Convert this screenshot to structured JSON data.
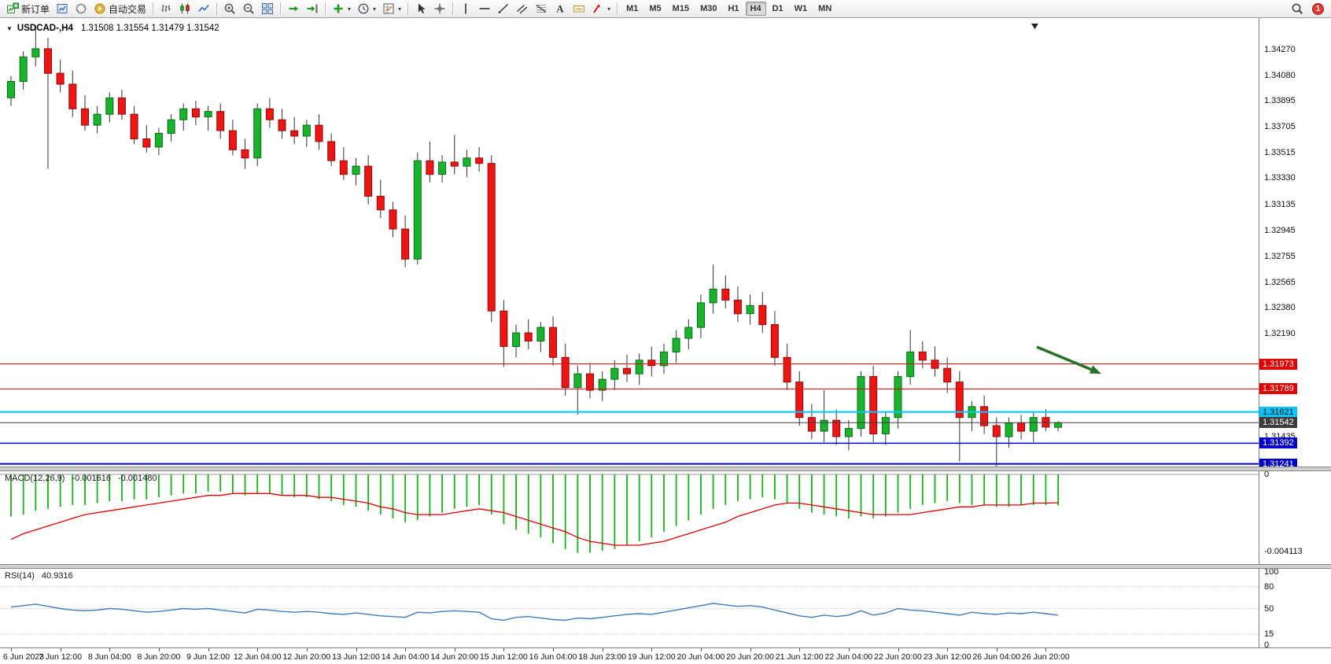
{
  "toolbar": {
    "groups": [
      [
        {
          "name": "new-order",
          "icon": "new-order",
          "label": "新订单"
        },
        {
          "name": "new-chart",
          "icon": "new-chart"
        },
        {
          "name": "profiles",
          "icon": "profiles"
        },
        {
          "name": "autotrading",
          "icon": "autotrading",
          "label": "自动交易"
        }
      ],
      [
        {
          "name": "bar-chart",
          "icon": "bar-chart"
        },
        {
          "name": "candlestick-chart",
          "icon": "candlestick-chart"
        },
        {
          "name": "line-chart",
          "icon": "line-chart"
        }
      ],
      [
        {
          "name": "zoom-in",
          "icon": "zoom-in"
        },
        {
          "name": "zoom-out",
          "icon": "zoom-out"
        },
        {
          "name": "tile-windows",
          "icon": "tile-windows"
        }
      ],
      [
        {
          "name": "auto-scroll",
          "icon": "auto-scroll"
        },
        {
          "name": "chart-shift",
          "icon": "chart-shift"
        }
      ],
      [
        {
          "name": "indicators",
          "icon": "indicators",
          "caret": true
        },
        {
          "name": "periods",
          "icon": "periods",
          "caret": true
        },
        {
          "name": "templates",
          "icon": "templates",
          "caret": true
        }
      ],
      [
        {
          "name": "cursor",
          "icon": "cursor"
        },
        {
          "name": "crosshair",
          "icon": "crosshair"
        }
      ],
      [
        {
          "name": "vertical-line",
          "icon": "vertical-line"
        },
        {
          "name": "horizontal-line",
          "icon": "horizontal-line"
        },
        {
          "name": "trendline",
          "icon": "trendline"
        },
        {
          "name": "equidistant-channel",
          "icon": "equidistant-channel"
        },
        {
          "name": "fibonacci",
          "icon": "fibonacci"
        },
        {
          "name": "text",
          "icon": "text"
        },
        {
          "name": "text-label",
          "icon": "text-label"
        },
        {
          "name": "arrows",
          "icon": "arrows",
          "caret": true
        }
      ]
    ],
    "timeframes": {
      "items": [
        "M1",
        "M5",
        "M15",
        "M30",
        "H1",
        "H4",
        "D1",
        "W1",
        "MN"
      ],
      "active": "H4"
    },
    "notification_count": "1"
  },
  "chart": {
    "title": "USDCAD-,H4",
    "ohlc_text": "1.31508 1.31554 1.31479 1.31542"
  },
  "chart_data": {
    "type": "candlestick",
    "symbol": "USDCAD-",
    "period": "H4",
    "colors": {
      "up": "#18b42c",
      "up_stroke": "#0b6b18",
      "down": "#ee1515",
      "down_stroke": "#8f0b0b",
      "wick": "#333333"
    },
    "price_axis_labels": [
      "1.34270",
      "1.34080",
      "1.33895",
      "1.33705",
      "1.33515",
      "1.33330",
      "1.33135",
      "1.32945",
      "1.32755",
      "1.32565",
      "1.32380",
      "1.32190",
      "1.31435"
    ],
    "time_axis_labels": [
      "6 Jun 2023",
      "7 Jun 12:00",
      "8 Jun 04:00",
      "8 Jun 20:00",
      "9 Jun 12:00",
      "12 Jun 04:00",
      "12 Jun 20:00",
      "13 Jun 12:00",
      "14 Jun 04:00",
      "14 Jun 20:00",
      "15 Jun 12:00",
      "16 Jun 04:00",
      "18 Jun 23:00",
      "19 Jun 12:00",
      "20 Jun 04:00",
      "20 Jun 20:00",
      "21 Jun 12:00",
      "22 Jun 04:00",
      "22 Jun 20:00",
      "23 Jun 12:00",
      "26 Jun 04:00",
      "26 Jun 20:00"
    ],
    "candles": [
      [
        1.3392,
        1.3408,
        1.3386,
        1.3404
      ],
      [
        1.3404,
        1.3426,
        1.3398,
        1.3422
      ],
      [
        1.3422,
        1.3445,
        1.3415,
        1.3428
      ],
      [
        1.3428,
        1.3436,
        1.334,
        1.341
      ],
      [
        1.341,
        1.342,
        1.3396,
        1.3402
      ],
      [
        1.3402,
        1.3412,
        1.3378,
        1.3384
      ],
      [
        1.3384,
        1.3394,
        1.3368,
        1.3372
      ],
      [
        1.3372,
        1.3386,
        1.3366,
        1.338
      ],
      [
        1.338,
        1.3396,
        1.3374,
        1.3392
      ],
      [
        1.3392,
        1.3398,
        1.3376,
        1.338
      ],
      [
        1.338,
        1.3386,
        1.3358,
        1.3362
      ],
      [
        1.3362,
        1.3372,
        1.3352,
        1.3356
      ],
      [
        1.3356,
        1.337,
        1.335,
        1.3366
      ],
      [
        1.3366,
        1.338,
        1.336,
        1.3376
      ],
      [
        1.3376,
        1.3388,
        1.3368,
        1.3384
      ],
      [
        1.3384,
        1.339,
        1.3372,
        1.3378
      ],
      [
        1.3378,
        1.3386,
        1.3368,
        1.3382
      ],
      [
        1.3382,
        1.3388,
        1.3362,
        1.3368
      ],
      [
        1.3368,
        1.3376,
        1.335,
        1.3354
      ],
      [
        1.3354,
        1.3362,
        1.334,
        1.3348
      ],
      [
        1.3348,
        1.3388,
        1.3342,
        1.3384
      ],
      [
        1.3384,
        1.3392,
        1.337,
        1.3376
      ],
      [
        1.3376,
        1.3384,
        1.3362,
        1.3368
      ],
      [
        1.3368,
        1.3378,
        1.3358,
        1.3364
      ],
      [
        1.3364,
        1.3376,
        1.3356,
        1.3372
      ],
      [
        1.3372,
        1.338,
        1.3354,
        1.336
      ],
      [
        1.336,
        1.3366,
        1.3342,
        1.3346
      ],
      [
        1.3346,
        1.3356,
        1.3332,
        1.3336
      ],
      [
        1.3336,
        1.3348,
        1.3328,
        1.3342
      ],
      [
        1.3342,
        1.335,
        1.3314,
        1.332
      ],
      [
        1.332,
        1.3332,
        1.3304,
        1.331
      ],
      [
        1.331,
        1.3316,
        1.329,
        1.3296
      ],
      [
        1.3296,
        1.3306,
        1.3268,
        1.3274
      ],
      [
        1.3274,
        1.3352,
        1.327,
        1.3346
      ],
      [
        1.3346,
        1.336,
        1.333,
        1.3336
      ],
      [
        1.3336,
        1.335,
        1.333,
        1.3345
      ],
      [
        1.3345,
        1.3365,
        1.3336,
        1.3342
      ],
      [
        1.3342,
        1.3354,
        1.3334,
        1.3348
      ],
      [
        1.3348,
        1.3356,
        1.3338,
        1.3344
      ],
      [
        1.3344,
        1.335,
        1.3228,
        1.3236
      ],
      [
        1.3236,
        1.3244,
        1.3195,
        1.321
      ],
      [
        1.321,
        1.3226,
        1.3202,
        1.322
      ],
      [
        1.322,
        1.323,
        1.3208,
        1.3214
      ],
      [
        1.3214,
        1.3228,
        1.3206,
        1.3224
      ],
      [
        1.3224,
        1.3232,
        1.3196,
        1.3202
      ],
      [
        1.3202,
        1.3212,
        1.3174,
        1.318
      ],
      [
        1.318,
        1.3196,
        1.316,
        1.319
      ],
      [
        1.319,
        1.3198,
        1.3172,
        1.3178
      ],
      [
        1.3178,
        1.3192,
        1.317,
        1.3186
      ],
      [
        1.3186,
        1.32,
        1.3178,
        1.3194
      ],
      [
        1.3194,
        1.3204,
        1.3184,
        1.319
      ],
      [
        1.319,
        1.3205,
        1.3182,
        1.32
      ],
      [
        1.32,
        1.321,
        1.3188,
        1.3196
      ],
      [
        1.3196,
        1.3212,
        1.319,
        1.3206
      ],
      [
        1.3206,
        1.3222,
        1.3198,
        1.3216
      ],
      [
        1.3216,
        1.323,
        1.3208,
        1.3224
      ],
      [
        1.3224,
        1.3248,
        1.3216,
        1.3242
      ],
      [
        1.3242,
        1.327,
        1.3234,
        1.3252
      ],
      [
        1.3252,
        1.3262,
        1.3238,
        1.3244
      ],
      [
        1.3244,
        1.3254,
        1.3228,
        1.3234
      ],
      [
        1.3234,
        1.3248,
        1.3226,
        1.324
      ],
      [
        1.324,
        1.325,
        1.322,
        1.3226
      ],
      [
        1.3226,
        1.3236,
        1.3196,
        1.3202
      ],
      [
        1.3202,
        1.3212,
        1.3178,
        1.3184
      ],
      [
        1.3184,
        1.3192,
        1.3152,
        1.3158
      ],
      [
        1.3158,
        1.3168,
        1.3142,
        1.3148
      ],
      [
        1.3148,
        1.3178,
        1.314,
        1.3156
      ],
      [
        1.3156,
        1.3164,
        1.3138,
        1.3144
      ],
      [
        1.3144,
        1.3156,
        1.3134,
        1.315
      ],
      [
        1.315,
        1.3192,
        1.3144,
        1.3188
      ],
      [
        1.3188,
        1.3196,
        1.314,
        1.3146
      ],
      [
        1.3146,
        1.3162,
        1.3138,
        1.3158
      ],
      [
        1.3158,
        1.3192,
        1.315,
        1.3188
      ],
      [
        1.3188,
        1.3222,
        1.3182,
        1.3206
      ],
      [
        1.3206,
        1.3214,
        1.3194,
        1.32
      ],
      [
        1.32,
        1.321,
        1.3188,
        1.3194
      ],
      [
        1.3194,
        1.3202,
        1.3176,
        1.3184
      ],
      [
        1.3184,
        1.3192,
        1.3126,
        1.3158
      ],
      [
        1.3158,
        1.317,
        1.3148,
        1.3166
      ],
      [
        1.3166,
        1.3174,
        1.3146,
        1.3152
      ],
      [
        1.3152,
        1.3158,
        1.3122,
        1.3144
      ],
      [
        1.3144,
        1.3158,
        1.3136,
        1.3154
      ],
      [
        1.3154,
        1.316,
        1.3142,
        1.3148
      ],
      [
        1.3148,
        1.3162,
        1.314,
        1.3158
      ],
      [
        1.3158,
        1.3164,
        1.3148,
        1.3151
      ],
      [
        1.31508,
        1.31554,
        1.31479,
        1.31542
      ]
    ],
    "hlines": [
      {
        "value": 1.31973,
        "label": "1.31973",
        "color": "#e00000",
        "width": 1,
        "text": "#ffffff"
      },
      {
        "value": 1.31789,
        "label": "1.31789",
        "color": "#e00000",
        "width": 1,
        "text": "#ffffff"
      },
      {
        "value": 1.31621,
        "label": "1.31621",
        "color": "#00c8ff",
        "width": 2,
        "text": "#000000"
      },
      {
        "value": 1.31542,
        "label": "1.31542",
        "color": "#3c3c3c",
        "width": 1,
        "text": "#ffffff"
      },
      {
        "value": 1.31392,
        "label": "1.31392",
        "color": "#0000c8",
        "width": 1.5,
        "text": "#ffffff"
      },
      {
        "value": 1.31241,
        "label": "1.31241",
        "color": "#0000c8",
        "width": 2,
        "text": "#ffffff"
      }
    ],
    "arrow_annotation": {
      "from": [
        1318,
        418
      ],
      "to": [
        1400,
        452
      ],
      "color": "#267326"
    },
    "macd": {
      "label": "MACD(12,26,9)",
      "value_main": "-0.001616",
      "value_signal": "-0.001480",
      "axis_labels": [
        "0",
        "-0.004113"
      ],
      "range": [
        0,
        -0.004113
      ],
      "hist_color": "#19b219",
      "signal_color": "#e00000",
      "histogram": [
        -0.0022,
        -0.0021,
        -0.0019,
        -0.0018,
        -0.0017,
        -0.0016,
        -0.0016,
        -0.0015,
        -0.0014,
        -0.0014,
        -0.0013,
        -0.0013,
        -0.0012,
        -0.0011,
        -0.001,
        -0.001,
        -0.0009,
        -0.0009,
        -0.001,
        -0.0011,
        -0.001,
        -0.001,
        -0.0011,
        -0.0012,
        -0.0012,
        -0.0013,
        -0.0014,
        -0.0016,
        -0.0017,
        -0.0019,
        -0.0021,
        -0.0023,
        -0.0025,
        -0.0024,
        -0.0022,
        -0.002,
        -0.0018,
        -0.0017,
        -0.0016,
        -0.0021,
        -0.0026,
        -0.0029,
        -0.0031,
        -0.0033,
        -0.0036,
        -0.0039,
        -0.0041,
        -0.0041,
        -0.004,
        -0.0039,
        -0.0037,
        -0.0035,
        -0.0033,
        -0.003,
        -0.0027,
        -0.0024,
        -0.0021,
        -0.0018,
        -0.0016,
        -0.0014,
        -0.0013,
        -0.0012,
        -0.0013,
        -0.0015,
        -0.0018,
        -0.002,
        -0.0021,
        -0.0022,
        -0.0023,
        -0.0022,
        -0.0023,
        -0.0022,
        -0.002,
        -0.0018,
        -0.0016,
        -0.0015,
        -0.0014,
        -0.0015,
        -0.0016,
        -0.0016,
        -0.0017,
        -0.0017,
        -0.0016,
        -0.0016,
        -0.0016,
        -0.001616
      ],
      "signal": [
        -0.0034,
        -0.0031,
        -0.0029,
        -0.0027,
        -0.0025,
        -0.0023,
        -0.0021,
        -0.002,
        -0.0019,
        -0.0018,
        -0.0017,
        -0.0016,
        -0.0015,
        -0.0014,
        -0.0013,
        -0.0012,
        -0.0011,
        -0.0011,
        -0.001,
        -0.001,
        -0.001,
        -0.001,
        -0.0011,
        -0.0011,
        -0.0011,
        -0.0012,
        -0.0012,
        -0.0013,
        -0.0014,
        -0.0015,
        -0.0017,
        -0.0018,
        -0.002,
        -0.0021,
        -0.0021,
        -0.0021,
        -0.002,
        -0.0019,
        -0.0018,
        -0.0019,
        -0.002,
        -0.0022,
        -0.0024,
        -0.0026,
        -0.0028,
        -0.003,
        -0.0033,
        -0.0035,
        -0.0036,
        -0.0037,
        -0.0037,
        -0.0037,
        -0.0036,
        -0.0035,
        -0.0033,
        -0.0031,
        -0.0029,
        -0.0027,
        -0.0025,
        -0.0022,
        -0.002,
        -0.0018,
        -0.0016,
        -0.0015,
        -0.0015,
        -0.0016,
        -0.0017,
        -0.0018,
        -0.0019,
        -0.002,
        -0.0021,
        -0.0021,
        -0.0021,
        -0.0021,
        -0.002,
        -0.0019,
        -0.0018,
        -0.0017,
        -0.0017,
        -0.0016,
        -0.0016,
        -0.0016,
        -0.0016,
        -0.0015,
        -0.0015,
        -0.00148
      ]
    },
    "rsi": {
      "label": "RSI(14)",
      "value": "40.9316",
      "axis_labels": [
        "100",
        "80",
        "50",
        "15",
        "0"
      ],
      "levels": [
        80,
        50,
        15
      ],
      "range": [
        0,
        100
      ],
      "color": "#3e7bbf",
      "values": [
        52,
        54,
        56,
        53,
        50,
        48,
        47,
        48,
        50,
        49,
        47,
        45,
        46,
        48,
        50,
        49,
        50,
        48,
        46,
        44,
        49,
        48,
        46,
        45,
        46,
        45,
        43,
        42,
        44,
        42,
        40,
        39,
        38,
        45,
        44,
        46,
        47,
        46,
        45,
        36,
        34,
        38,
        39,
        37,
        35,
        34,
        37,
        36,
        38,
        40,
        42,
        43,
        42,
        45,
        48,
        51,
        54,
        57,
        55,
        53,
        54,
        52,
        48,
        44,
        40,
        38,
        41,
        39,
        41,
        47,
        41,
        44,
        50,
        48,
        47,
        45,
        43,
        41,
        45,
        43,
        42,
        44,
        43,
        45,
        43,
        40.93
      ]
    }
  }
}
